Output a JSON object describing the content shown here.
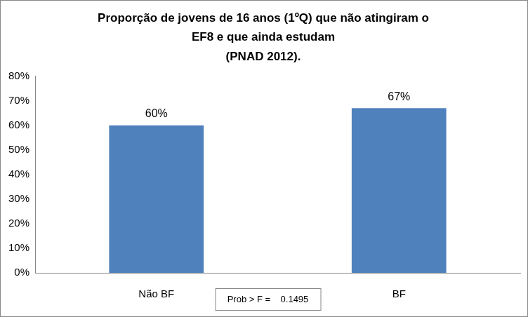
{
  "chart_data": {
    "type": "bar",
    "title": [
      "Proporção de jovens de 16 anos (1ºQ) que não atingiram o",
      "EF8 e que ainda estudam",
      "(PNAD 2012)."
    ],
    "categories": [
      "Não BF",
      "BF"
    ],
    "values": [
      60,
      67
    ],
    "value_labels": [
      "60%",
      "67%"
    ],
    "color": "#4f81bd",
    "ylim": [
      0,
      80
    ],
    "yticks": [
      {
        "value": 0,
        "label": "0%"
      },
      {
        "value": 10,
        "label": "10%"
      },
      {
        "value": 20,
        "label": "20%"
      },
      {
        "value": 30,
        "label": "30%"
      },
      {
        "value": 40,
        "label": "40%"
      },
      {
        "value": 50,
        "label": "50%"
      },
      {
        "value": 60,
        "label": "60%"
      },
      {
        "value": 70,
        "label": "70%"
      },
      {
        "value": 80,
        "label": "80%"
      }
    ],
    "grid": false,
    "data_labels": true,
    "annotation": "Prob > F =    0.1495"
  }
}
